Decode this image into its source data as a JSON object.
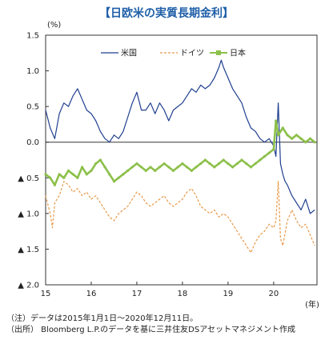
{
  "chart_data": {
    "type": "line",
    "title": "【日欧米の実質長期金利】",
    "ylabel": "(%)",
    "xlabel": "(年)",
    "ylim": [
      -2.0,
      1.5
    ],
    "y_ticks": [
      {
        "value": 1.5,
        "label": "1.5"
      },
      {
        "value": 1.0,
        "label": "1.0"
      },
      {
        "value": 0.5,
        "label": "0.5"
      },
      {
        "value": 0.0,
        "label": "0.0"
      },
      {
        "value": -0.5,
        "label": "▲ 0.5"
      },
      {
        "value": -1.0,
        "label": "▲ 1.0"
      },
      {
        "value": -1.5,
        "label": "▲ 1.5"
      },
      {
        "value": -2.0,
        "label": "▲ 2.0"
      }
    ],
    "xlim": [
      2015.0,
      2020.95
    ],
    "x_ticks": [
      {
        "value": 2015,
        "label": "15"
      },
      {
        "value": 2016,
        "label": "16"
      },
      {
        "value": 2017,
        "label": "17"
      },
      {
        "value": 2018,
        "label": "18"
      },
      {
        "value": 2019,
        "label": "19"
      },
      {
        "value": 2020,
        "label": "20"
      }
    ],
    "legend": "top-center",
    "series": [
      {
        "name": "米国",
        "color": "#1f3f8f",
        "style": "solid",
        "x": [
          2015.0,
          2015.1,
          2015.2,
          2015.3,
          2015.4,
          2015.5,
          2015.6,
          2015.7,
          2015.8,
          2015.9,
          2016.0,
          2016.1,
          2016.2,
          2016.3,
          2016.4,
          2016.5,
          2016.6,
          2016.7,
          2016.8,
          2016.9,
          2017.0,
          2017.1,
          2017.2,
          2017.3,
          2017.4,
          2017.5,
          2017.6,
          2017.7,
          2017.8,
          2017.9,
          2018.0,
          2018.1,
          2018.2,
          2018.3,
          2018.4,
          2018.5,
          2018.6,
          2018.7,
          2018.8,
          2018.85,
          2018.9,
          2019.0,
          2019.1,
          2019.2,
          2019.3,
          2019.4,
          2019.5,
          2019.6,
          2019.7,
          2019.8,
          2019.9,
          2020.0,
          2020.05,
          2020.1,
          2020.15,
          2020.2,
          2020.25,
          2020.3,
          2020.4,
          2020.5,
          2020.6,
          2020.7,
          2020.8,
          2020.9
        ],
        "values": [
          0.45,
          0.2,
          0.05,
          0.4,
          0.55,
          0.5,
          0.65,
          0.75,
          0.6,
          0.45,
          0.4,
          0.3,
          0.15,
          0.05,
          0.0,
          0.1,
          0.05,
          0.15,
          0.35,
          0.55,
          0.7,
          0.45,
          0.45,
          0.55,
          0.4,
          0.55,
          0.45,
          0.3,
          0.45,
          0.5,
          0.55,
          0.65,
          0.75,
          0.7,
          0.8,
          0.75,
          0.8,
          0.9,
          1.05,
          1.15,
          1.05,
          0.9,
          0.75,
          0.65,
          0.55,
          0.35,
          0.2,
          0.15,
          0.05,
          0.0,
          0.05,
          -0.05,
          -0.2,
          0.55,
          -0.3,
          -0.45,
          -0.55,
          -0.6,
          -0.75,
          -0.85,
          -0.95,
          -0.8,
          -1.0,
          -0.95
        ]
      },
      {
        "name": "ドイツ",
        "color": "#e89a4a",
        "style": "dashed",
        "x": [
          2015.0,
          2015.1,
          2015.15,
          2015.2,
          2015.3,
          2015.4,
          2015.5,
          2015.6,
          2015.7,
          2015.8,
          2015.9,
          2016.0,
          2016.1,
          2016.2,
          2016.3,
          2016.4,
          2016.5,
          2016.6,
          2016.7,
          2016.8,
          2016.9,
          2017.0,
          2017.1,
          2017.2,
          2017.3,
          2017.4,
          2017.5,
          2017.6,
          2017.7,
          2017.8,
          2017.9,
          2018.0,
          2018.1,
          2018.2,
          2018.3,
          2018.4,
          2018.5,
          2018.6,
          2018.7,
          2018.8,
          2018.9,
          2019.0,
          2019.1,
          2019.2,
          2019.3,
          2019.4,
          2019.5,
          2019.6,
          2019.7,
          2019.8,
          2019.9,
          2020.0,
          2020.05,
          2020.1,
          2020.15,
          2020.2,
          2020.3,
          2020.4,
          2020.5,
          2020.6,
          2020.7,
          2020.8,
          2020.9
        ],
        "values": [
          -0.75,
          -1.0,
          -1.2,
          -0.85,
          -0.75,
          -0.55,
          -0.6,
          -0.7,
          -0.65,
          -0.75,
          -0.7,
          -0.8,
          -0.75,
          -0.85,
          -0.95,
          -1.05,
          -1.1,
          -1.0,
          -0.95,
          -0.9,
          -0.8,
          -0.7,
          -0.75,
          -0.85,
          -0.9,
          -0.85,
          -0.8,
          -0.75,
          -0.85,
          -0.9,
          -0.85,
          -0.8,
          -0.7,
          -0.65,
          -0.75,
          -0.9,
          -0.95,
          -1.0,
          -0.95,
          -1.05,
          -1.0,
          -1.05,
          -1.15,
          -1.25,
          -1.35,
          -1.45,
          -1.55,
          -1.4,
          -1.3,
          -1.25,
          -1.15,
          -1.2,
          -1.1,
          -0.55,
          -1.35,
          -1.45,
          -1.1,
          -0.95,
          -1.1,
          -1.2,
          -1.15,
          -1.3,
          -1.45
        ]
      },
      {
        "name": "日本",
        "color": "#8cc04a",
        "style": "solid",
        "x": [
          2015.0,
          2015.1,
          2015.2,
          2015.3,
          2015.4,
          2015.5,
          2015.6,
          2015.7,
          2015.8,
          2015.9,
          2016.0,
          2016.1,
          2016.2,
          2016.3,
          2016.4,
          2016.5,
          2016.6,
          2016.7,
          2016.8,
          2016.9,
          2017.0,
          2017.1,
          2017.2,
          2017.3,
          2017.4,
          2017.5,
          2017.6,
          2017.7,
          2017.8,
          2017.9,
          2018.0,
          2018.1,
          2018.2,
          2018.3,
          2018.4,
          2018.5,
          2018.6,
          2018.7,
          2018.8,
          2018.9,
          2019.0,
          2019.1,
          2019.2,
          2019.3,
          2019.4,
          2019.5,
          2019.6,
          2019.7,
          2019.8,
          2019.9,
          2020.0,
          2020.05,
          2020.1,
          2020.2,
          2020.3,
          2020.4,
          2020.5,
          2020.6,
          2020.7,
          2020.8,
          2020.9
        ],
        "values": [
          -0.45,
          -0.5,
          -0.6,
          -0.45,
          -0.5,
          -0.4,
          -0.45,
          -0.5,
          -0.35,
          -0.45,
          -0.4,
          -0.3,
          -0.25,
          -0.35,
          -0.45,
          -0.55,
          -0.5,
          -0.45,
          -0.4,
          -0.35,
          -0.3,
          -0.35,
          -0.4,
          -0.35,
          -0.4,
          -0.35,
          -0.3,
          -0.35,
          -0.4,
          -0.35,
          -0.3,
          -0.35,
          -0.4,
          -0.35,
          -0.3,
          -0.25,
          -0.3,
          -0.35,
          -0.3,
          -0.25,
          -0.3,
          -0.35,
          -0.3,
          -0.25,
          -0.3,
          -0.35,
          -0.3,
          -0.25,
          -0.2,
          -0.15,
          -0.1,
          0.3,
          0.1,
          0.2,
          0.1,
          0.05,
          0.1,
          0.05,
          0.0,
          0.05,
          0.0
        ]
      }
    ]
  },
  "notes": [
    "（注）データは2015年1月1日～2020年12月11日。",
    "（出所） Bloomberg L.P.のデータを基に三井住友DSアセットマネジメント作成"
  ]
}
